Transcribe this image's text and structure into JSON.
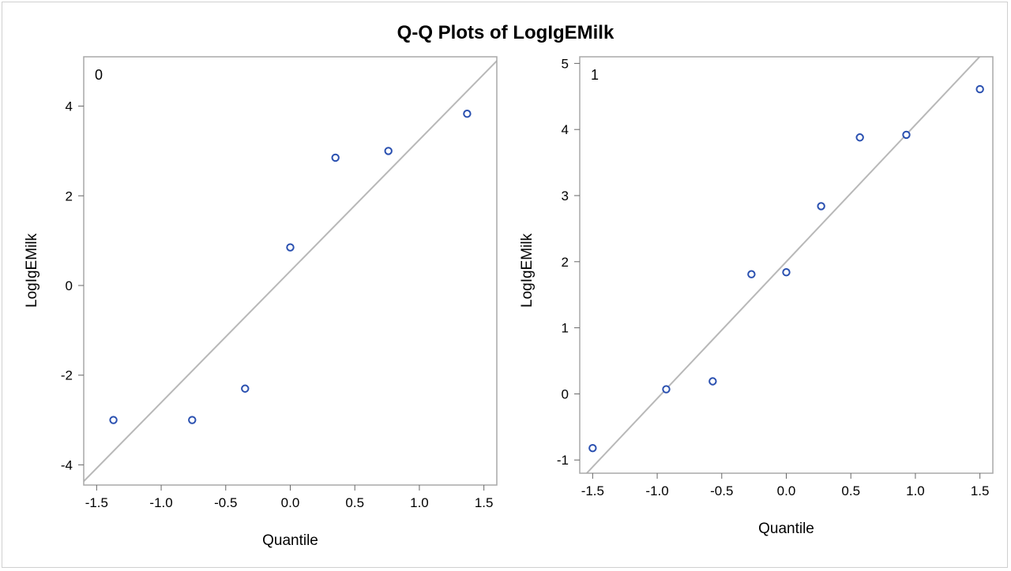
{
  "title": "Q-Q Plots of LogIgEMilk",
  "colors": {
    "marker": "#2a50b0",
    "refline": "#b8b8b8",
    "frame": "#a8a8a8",
    "text": "#000000"
  },
  "chart_data": [
    {
      "type": "scatter",
      "panel_label": "0",
      "xlabel": "Quantile",
      "ylabel": "LogIgEMilk",
      "xlim": [
        -1.6,
        1.6
      ],
      "ylim": [
        -4.45,
        5.1
      ],
      "xticks": [
        -1.5,
        -1.0,
        -0.5,
        0.0,
        0.5,
        1.0,
        1.5
      ],
      "xtick_labels": [
        "-1.5",
        "-1.0",
        "-0.5",
        "0.0",
        "0.5",
        "1.0",
        "1.5"
      ],
      "yticks": [
        -4,
        -2,
        0,
        2,
        4
      ],
      "ytick_labels": [
        "-4",
        "-2",
        "0",
        "2",
        "4"
      ],
      "x": [
        -1.37,
        -0.76,
        -0.35,
        0.0,
        0.35,
        0.76,
        1.37
      ],
      "y": [
        -3.0,
        -3.0,
        -2.3,
        0.85,
        2.85,
        3.0,
        3.83
      ],
      "reference_line": {
        "intercept": 0.32,
        "slope": 2.93
      }
    },
    {
      "type": "scatter",
      "panel_label": "1",
      "xlabel": "Quantile",
      "ylabel": "LogIgEMilk",
      "xlim": [
        -1.6,
        1.6
      ],
      "ylim": [
        -1.2,
        5.1
      ],
      "xticks": [
        -1.5,
        -1.0,
        -0.5,
        0.0,
        0.5,
        1.0,
        1.5
      ],
      "xtick_labels": [
        "-1.5",
        "-1.0",
        "-0.5",
        "0.0",
        "0.5",
        "1.0",
        "1.5"
      ],
      "yticks": [
        -1,
        0,
        1,
        2,
        3,
        4,
        5
      ],
      "ytick_labels": [
        "-1",
        "0",
        "1",
        "2",
        "3",
        "4",
        "5"
      ],
      "x": [
        -1.5,
        -0.93,
        -0.57,
        -0.27,
        0.0,
        0.27,
        0.57,
        0.93,
        1.5
      ],
      "y": [
        -0.82,
        0.07,
        0.19,
        1.81,
        1.84,
        2.84,
        3.88,
        3.92,
        4.61
      ],
      "reference_line": {
        "intercept": 2.0,
        "slope": 2.07
      }
    }
  ]
}
